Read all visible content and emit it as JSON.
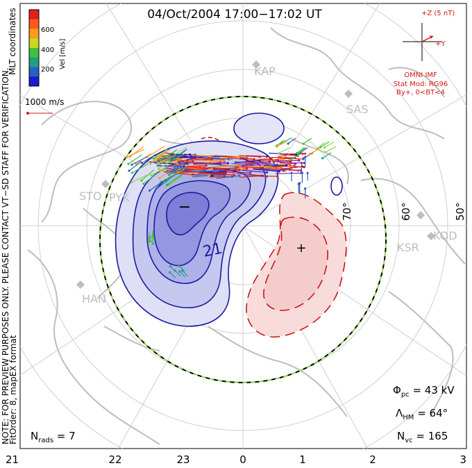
{
  "title": "04/Oct/2004 17:00−17:02 UT",
  "coordinates": "MLT coordinates",
  "colorbar": {
    "label": "Vel [m/s]",
    "ticks": [
      "600",
      "400",
      "200"
    ],
    "colors": [
      "#e02020",
      "#ff5a1a",
      "#ff9a1a",
      "#c8d820",
      "#40c040",
      "#20a080",
      "#2a60c0",
      "#1a1ad0"
    ]
  },
  "vector_scale": "1000 m/s",
  "notice": "NOTE: FOR PREVIEW PURPOSES ONLY. PLEASE CONTACT VT−SD STAFF FOR VERIFICATION.",
  "fit_info": "FitOrder: 8, mapEX format",
  "imf": {
    "bz_label": "+Z (5 nT)",
    "by_label": "+Y",
    "source": "OMNI IMF",
    "model": "Stat Mod: RG96",
    "condition": "By+, 0<BT<4"
  },
  "stations": [
    "KAP",
    "SAS",
    "STO",
    "PYK",
    "KOD",
    "KSR",
    "HAN"
  ],
  "latitude_labels": [
    "70°",
    "60°",
    "50°"
  ],
  "contour_label": "21",
  "potential_min_marker": "−",
  "potential_max_marker": "+",
  "stats": {
    "phi_pc": {
      "symbol": "Φ",
      "sub": "pc",
      "value": " = 43 kV"
    },
    "lambda_hm": {
      "symbol": "Λ",
      "sub": "HM",
      "value": " = 64°"
    },
    "n_vc": {
      "symbol": "N",
      "sub": "vc",
      "value": " = 165"
    },
    "n_rads": {
      "symbol": "N",
      "sub": "rads",
      "value": " = 7"
    }
  },
  "mlt_axis": [
    "21",
    "22",
    "23",
    "0",
    "1",
    "2",
    "3"
  ]
}
